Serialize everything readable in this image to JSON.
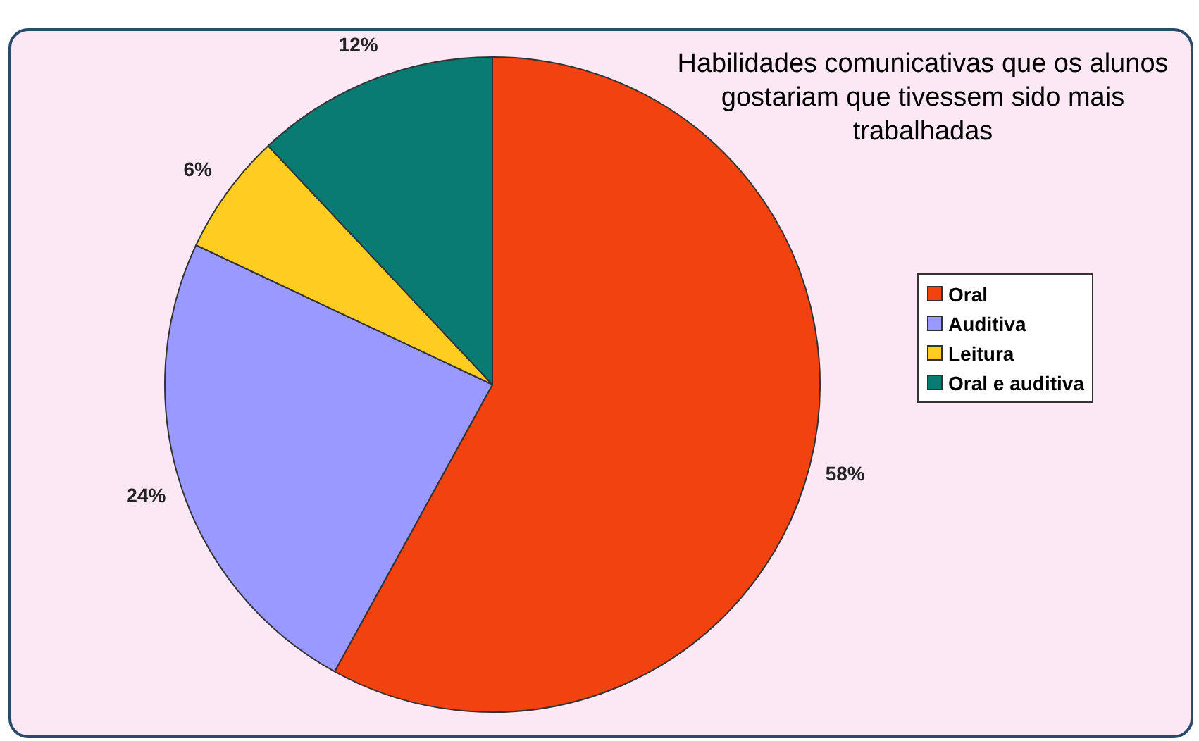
{
  "chart_data": {
    "type": "pie",
    "title": "Habilidades comunicativas que  os alunos gostariam que tivessem sido mais trabalhadas",
    "categories": [
      "Oral",
      "Auditiva",
      "Leitura",
      "Oral e auditiva"
    ],
    "values": [
      58,
      24,
      6,
      12
    ],
    "colors": [
      "#f2420f",
      "#9999ff",
      "#ffcc22",
      "#0a7b72"
    ],
    "value_labels": [
      "58%",
      "24%",
      "6%",
      "12%"
    ],
    "legend": "right"
  }
}
